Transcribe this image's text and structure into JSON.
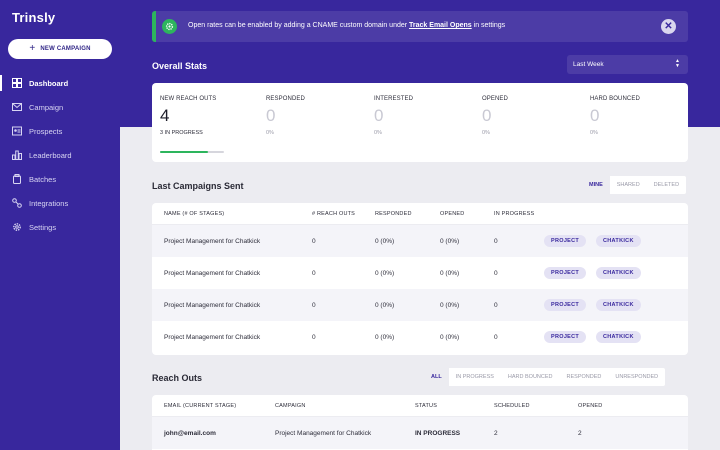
{
  "app": {
    "name": "Trinsly"
  },
  "sidebar": {
    "new_campaign_label": "NEW CAMPAIGN",
    "items": [
      {
        "label": "Dashboard",
        "icon": "dashboard-icon",
        "active": true
      },
      {
        "label": "Campaign",
        "icon": "mail-icon",
        "active": false
      },
      {
        "label": "Prospects",
        "icon": "prospects-icon",
        "active": false
      },
      {
        "label": "Leaderboard",
        "icon": "leaderboard-icon",
        "active": false
      },
      {
        "label": "Batches",
        "icon": "batches-icon",
        "active": false
      },
      {
        "label": "Integrations",
        "icon": "integrations-icon",
        "active": false
      },
      {
        "label": "Settings",
        "icon": "gear-icon",
        "active": false
      }
    ]
  },
  "alert": {
    "text_before": "Open rates can be enabled by adding a CNAME custom domain under ",
    "link": "Track Email Opens",
    "text_after": " in settings",
    "close": "✕"
  },
  "overall": {
    "title": "Overall Stats",
    "period": "Last Week",
    "stats": [
      {
        "label": "NEW REACH OUTS",
        "value": "4",
        "sub": "3 IN PROGRESS",
        "progress": 0.75
      },
      {
        "label": "RESPONDED",
        "value": "0",
        "sub": "0%"
      },
      {
        "label": "INTERESTED",
        "value": "0",
        "sub": "0%"
      },
      {
        "label": "OPENED",
        "value": "0",
        "sub": "0%"
      },
      {
        "label": "HARD BOUNCED",
        "value": "0",
        "sub": "0%"
      }
    ]
  },
  "campaigns": {
    "title": "Last Campaigns Sent",
    "tabs": [
      "MINE",
      "SHARED",
      "DELETED"
    ],
    "active_tab": "MINE",
    "columns": [
      "NAME (# OF STAGES)",
      "# REACH OUTS",
      "RESPONDED",
      "OPENED",
      "IN PROGRESS"
    ],
    "rows": [
      {
        "name": "Project Management for Chatkick",
        "reach_outs": "0",
        "responded": "0 (0%)",
        "opened": "0 (0%)",
        "in_progress": "0",
        "tags": [
          "PROJECT",
          "CHATKICK"
        ]
      },
      {
        "name": "Project Management for Chatkick",
        "reach_outs": "0",
        "responded": "0 (0%)",
        "opened": "0 (0%)",
        "in_progress": "0",
        "tags": [
          "PROJECT",
          "CHATKICK"
        ]
      },
      {
        "name": "Project Management for Chatkick",
        "reach_outs": "0",
        "responded": "0 (0%)",
        "opened": "0 (0%)",
        "in_progress": "0",
        "tags": [
          "PROJECT",
          "CHATKICK"
        ]
      },
      {
        "name": "Project Management for Chatkick",
        "reach_outs": "0",
        "responded": "0 (0%)",
        "opened": "0 (0%)",
        "in_progress": "0",
        "tags": [
          "PROJECT",
          "CHATKICK"
        ]
      }
    ]
  },
  "reach_outs": {
    "title": "Reach Outs",
    "tabs": [
      "ALL",
      "IN PROGRESS",
      "HARD BOUNCED",
      "RESPONDED",
      "UNRESPONDED"
    ],
    "active_tab": "ALL",
    "columns": [
      "EMAIL (CURRENT STAGE)",
      "CAMPAIGN",
      "STATUS",
      "SCHEDULED",
      "OPENED"
    ],
    "rows": [
      {
        "email": "john@email.com",
        "campaign": "Project Management for Chatkick",
        "status": "IN PROGRESS",
        "scheduled": "2",
        "opened": "2"
      }
    ]
  },
  "colors": {
    "brand": "#38279d",
    "success": "#2db55d",
    "background": "#ececf1"
  }
}
